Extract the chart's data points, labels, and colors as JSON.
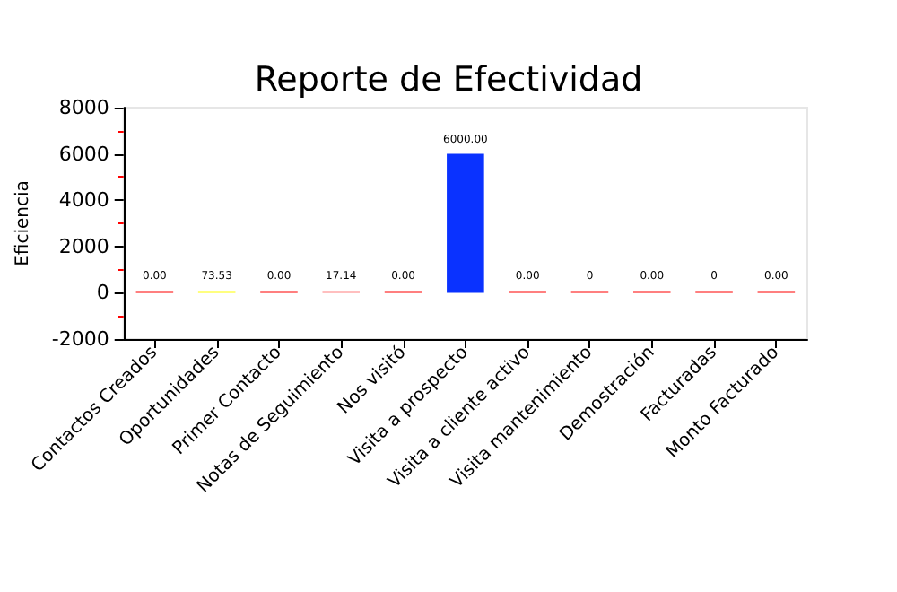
{
  "chart_data": {
    "type": "bar",
    "title": "Reporte de Efectividad",
    "ylabel": "Eficiencia",
    "categories": [
      "Contactos Creados",
      "Oportunidades",
      "Primer Contacto",
      "Notas de Seguimiento",
      "Nos visitó",
      "Visita a prospecto",
      "Visita a cliente activo",
      "Visita mantenimiento",
      "Demostración",
      "Facturadas",
      "Monto Facturado"
    ],
    "values": [
      0,
      73.53,
      0,
      17.14,
      0,
      6000,
      0,
      0,
      0,
      0,
      0
    ],
    "value_labels": [
      "0.00",
      "73.53",
      "0.00",
      "17.14",
      "0.00",
      "6000.00",
      "0.00",
      "0",
      "0.00",
      "0",
      "0.00"
    ],
    "colors": [
      "#ff0000",
      "#ffff00",
      "#ff0000",
      "#ff8080",
      "#ff0000",
      "#0a32ff",
      "#ff0000",
      "#ff0000",
      "#ff0000",
      "#ff0000",
      "#ff0000"
    ],
    "ylim": [
      -2000,
      8000
    ],
    "yticks": [
      -2000,
      0,
      2000,
      4000,
      6000,
      8000
    ],
    "grid": false
  }
}
